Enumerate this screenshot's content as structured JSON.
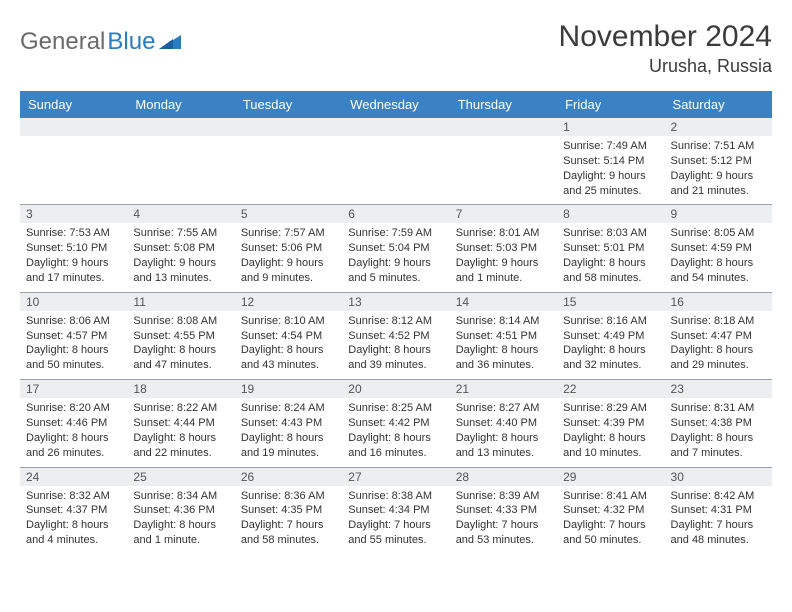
{
  "brand": {
    "gray": "General",
    "blue": "Blue"
  },
  "title": "November 2024",
  "location": "Urusha, Russia",
  "colors": {
    "header_bg": "#3b82c4",
    "header_text": "#ffffff",
    "daynum_bg": "#eceef0",
    "row_border": "#9aa3ab",
    "text": "#333333",
    "logo_gray": "#6a6a6a",
    "logo_blue": "#2b7bbf"
  },
  "fonts": {
    "title_size": 30,
    "location_size": 18,
    "weekday_size": 13,
    "daynum_size": 12,
    "body_size": 11
  },
  "weekdays": [
    "Sunday",
    "Monday",
    "Tuesday",
    "Wednesday",
    "Thursday",
    "Friday",
    "Saturday"
  ],
  "weeks": [
    [
      {
        "n": "",
        "sunrise": "",
        "sunset": "",
        "daylight": ""
      },
      {
        "n": "",
        "sunrise": "",
        "sunset": "",
        "daylight": ""
      },
      {
        "n": "",
        "sunrise": "",
        "sunset": "",
        "daylight": ""
      },
      {
        "n": "",
        "sunrise": "",
        "sunset": "",
        "daylight": ""
      },
      {
        "n": "",
        "sunrise": "",
        "sunset": "",
        "daylight": ""
      },
      {
        "n": "1",
        "sunrise": "Sunrise: 7:49 AM",
        "sunset": "Sunset: 5:14 PM",
        "daylight": "Daylight: 9 hours and 25 minutes."
      },
      {
        "n": "2",
        "sunrise": "Sunrise: 7:51 AM",
        "sunset": "Sunset: 5:12 PM",
        "daylight": "Daylight: 9 hours and 21 minutes."
      }
    ],
    [
      {
        "n": "3",
        "sunrise": "Sunrise: 7:53 AM",
        "sunset": "Sunset: 5:10 PM",
        "daylight": "Daylight: 9 hours and 17 minutes."
      },
      {
        "n": "4",
        "sunrise": "Sunrise: 7:55 AM",
        "sunset": "Sunset: 5:08 PM",
        "daylight": "Daylight: 9 hours and 13 minutes."
      },
      {
        "n": "5",
        "sunrise": "Sunrise: 7:57 AM",
        "sunset": "Sunset: 5:06 PM",
        "daylight": "Daylight: 9 hours and 9 minutes."
      },
      {
        "n": "6",
        "sunrise": "Sunrise: 7:59 AM",
        "sunset": "Sunset: 5:04 PM",
        "daylight": "Daylight: 9 hours and 5 minutes."
      },
      {
        "n": "7",
        "sunrise": "Sunrise: 8:01 AM",
        "sunset": "Sunset: 5:03 PM",
        "daylight": "Daylight: 9 hours and 1 minute."
      },
      {
        "n": "8",
        "sunrise": "Sunrise: 8:03 AM",
        "sunset": "Sunset: 5:01 PM",
        "daylight": "Daylight: 8 hours and 58 minutes."
      },
      {
        "n": "9",
        "sunrise": "Sunrise: 8:05 AM",
        "sunset": "Sunset: 4:59 PM",
        "daylight": "Daylight: 8 hours and 54 minutes."
      }
    ],
    [
      {
        "n": "10",
        "sunrise": "Sunrise: 8:06 AM",
        "sunset": "Sunset: 4:57 PM",
        "daylight": "Daylight: 8 hours and 50 minutes."
      },
      {
        "n": "11",
        "sunrise": "Sunrise: 8:08 AM",
        "sunset": "Sunset: 4:55 PM",
        "daylight": "Daylight: 8 hours and 47 minutes."
      },
      {
        "n": "12",
        "sunrise": "Sunrise: 8:10 AM",
        "sunset": "Sunset: 4:54 PM",
        "daylight": "Daylight: 8 hours and 43 minutes."
      },
      {
        "n": "13",
        "sunrise": "Sunrise: 8:12 AM",
        "sunset": "Sunset: 4:52 PM",
        "daylight": "Daylight: 8 hours and 39 minutes."
      },
      {
        "n": "14",
        "sunrise": "Sunrise: 8:14 AM",
        "sunset": "Sunset: 4:51 PM",
        "daylight": "Daylight: 8 hours and 36 minutes."
      },
      {
        "n": "15",
        "sunrise": "Sunrise: 8:16 AM",
        "sunset": "Sunset: 4:49 PM",
        "daylight": "Daylight: 8 hours and 32 minutes."
      },
      {
        "n": "16",
        "sunrise": "Sunrise: 8:18 AM",
        "sunset": "Sunset: 4:47 PM",
        "daylight": "Daylight: 8 hours and 29 minutes."
      }
    ],
    [
      {
        "n": "17",
        "sunrise": "Sunrise: 8:20 AM",
        "sunset": "Sunset: 4:46 PM",
        "daylight": "Daylight: 8 hours and 26 minutes."
      },
      {
        "n": "18",
        "sunrise": "Sunrise: 8:22 AM",
        "sunset": "Sunset: 4:44 PM",
        "daylight": "Daylight: 8 hours and 22 minutes."
      },
      {
        "n": "19",
        "sunrise": "Sunrise: 8:24 AM",
        "sunset": "Sunset: 4:43 PM",
        "daylight": "Daylight: 8 hours and 19 minutes."
      },
      {
        "n": "20",
        "sunrise": "Sunrise: 8:25 AM",
        "sunset": "Sunset: 4:42 PM",
        "daylight": "Daylight: 8 hours and 16 minutes."
      },
      {
        "n": "21",
        "sunrise": "Sunrise: 8:27 AM",
        "sunset": "Sunset: 4:40 PM",
        "daylight": "Daylight: 8 hours and 13 minutes."
      },
      {
        "n": "22",
        "sunrise": "Sunrise: 8:29 AM",
        "sunset": "Sunset: 4:39 PM",
        "daylight": "Daylight: 8 hours and 10 minutes."
      },
      {
        "n": "23",
        "sunrise": "Sunrise: 8:31 AM",
        "sunset": "Sunset: 4:38 PM",
        "daylight": "Daylight: 8 hours and 7 minutes."
      }
    ],
    [
      {
        "n": "24",
        "sunrise": "Sunrise: 8:32 AM",
        "sunset": "Sunset: 4:37 PM",
        "daylight": "Daylight: 8 hours and 4 minutes."
      },
      {
        "n": "25",
        "sunrise": "Sunrise: 8:34 AM",
        "sunset": "Sunset: 4:36 PM",
        "daylight": "Daylight: 8 hours and 1 minute."
      },
      {
        "n": "26",
        "sunrise": "Sunrise: 8:36 AM",
        "sunset": "Sunset: 4:35 PM",
        "daylight": "Daylight: 7 hours and 58 minutes."
      },
      {
        "n": "27",
        "sunrise": "Sunrise: 8:38 AM",
        "sunset": "Sunset: 4:34 PM",
        "daylight": "Daylight: 7 hours and 55 minutes."
      },
      {
        "n": "28",
        "sunrise": "Sunrise: 8:39 AM",
        "sunset": "Sunset: 4:33 PM",
        "daylight": "Daylight: 7 hours and 53 minutes."
      },
      {
        "n": "29",
        "sunrise": "Sunrise: 8:41 AM",
        "sunset": "Sunset: 4:32 PM",
        "daylight": "Daylight: 7 hours and 50 minutes."
      },
      {
        "n": "30",
        "sunrise": "Sunrise: 8:42 AM",
        "sunset": "Sunset: 4:31 PM",
        "daylight": "Daylight: 7 hours and 48 minutes."
      }
    ]
  ]
}
